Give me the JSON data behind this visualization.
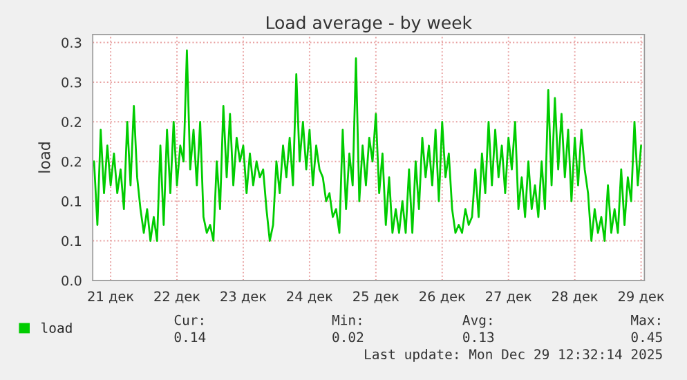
{
  "chart_data": {
    "type": "line",
    "title": "Load average - by week",
    "ylabel": "load",
    "x": [
      21.25,
      21.3,
      21.35,
      21.4,
      21.45,
      21.5,
      21.55,
      21.6,
      21.65,
      21.7,
      21.75,
      21.8,
      21.85,
      21.9,
      21.95,
      22.0,
      22.05,
      22.1,
      22.15,
      22.2,
      22.25,
      22.3,
      22.35,
      22.4,
      22.45,
      22.5,
      22.55,
      22.6,
      22.65,
      22.7,
      22.75,
      22.8,
      22.85,
      22.9,
      22.95,
      23.0,
      23.05,
      23.1,
      23.15,
      23.2,
      23.25,
      23.3,
      23.35,
      23.4,
      23.45,
      23.5,
      23.55,
      23.6,
      23.65,
      23.7,
      23.75,
      23.8,
      23.85,
      23.9,
      23.95,
      24.0,
      24.05,
      24.1,
      24.15,
      24.2,
      24.25,
      24.3,
      24.35,
      24.4,
      24.45,
      24.5,
      24.55,
      24.6,
      24.65,
      24.7,
      24.75,
      24.8,
      24.85,
      24.9,
      24.95,
      25.0,
      25.05,
      25.1,
      25.15,
      25.2,
      25.25,
      25.3,
      25.35,
      25.4,
      25.45,
      25.5,
      25.55,
      25.6,
      25.65,
      25.7,
      25.75,
      25.8,
      25.85,
      25.9,
      25.95,
      26.0,
      26.05,
      26.1,
      26.15,
      26.2,
      26.25,
      26.3,
      26.35,
      26.4,
      26.45,
      26.5,
      26.55,
      26.6,
      26.65,
      26.7,
      26.75,
      26.8,
      26.85,
      26.9,
      26.95,
      27.0,
      27.05,
      27.1,
      27.15,
      27.2,
      27.25,
      27.3,
      27.35,
      27.4,
      27.45,
      27.5,
      27.55,
      27.6,
      27.65,
      27.7,
      27.75,
      27.8,
      27.85,
      27.9,
      27.95,
      28.0,
      28.05,
      28.1,
      28.15,
      28.2,
      28.25,
      28.3,
      28.35,
      28.4,
      28.45,
      28.5,
      28.55,
      28.6,
      28.65,
      28.7,
      28.75,
      28.8,
      28.85,
      28.9,
      28.95,
      29.0,
      29.05,
      29.1,
      29.15,
      29.2,
      29.25,
      29.3,
      29.35,
      29.4,
      29.45,
      29.5
    ],
    "series": [
      {
        "name": "load",
        "color": "#00cc00",
        "values": [
          0.15,
          0.07,
          0.19,
          0.11,
          0.17,
          0.12,
          0.16,
          0.11,
          0.14,
          0.09,
          0.2,
          0.12,
          0.22,
          0.13,
          0.09,
          0.06,
          0.09,
          0.05,
          0.08,
          0.05,
          0.17,
          0.07,
          0.19,
          0.11,
          0.2,
          0.12,
          0.17,
          0.15,
          0.29,
          0.14,
          0.19,
          0.12,
          0.2,
          0.08,
          0.06,
          0.07,
          0.05,
          0.15,
          0.09,
          0.22,
          0.13,
          0.21,
          0.12,
          0.18,
          0.15,
          0.17,
          0.11,
          0.16,
          0.12,
          0.15,
          0.13,
          0.14,
          0.09,
          0.05,
          0.07,
          0.15,
          0.11,
          0.17,
          0.13,
          0.18,
          0.12,
          0.26,
          0.15,
          0.2,
          0.14,
          0.19,
          0.12,
          0.17,
          0.14,
          0.13,
          0.1,
          0.11,
          0.08,
          0.09,
          0.06,
          0.19,
          0.09,
          0.16,
          0.12,
          0.28,
          0.1,
          0.17,
          0.12,
          0.18,
          0.15,
          0.21,
          0.11,
          0.16,
          0.07,
          0.13,
          0.06,
          0.09,
          0.06,
          0.1,
          0.06,
          0.14,
          0.06,
          0.15,
          0.09,
          0.18,
          0.13,
          0.17,
          0.12,
          0.19,
          0.1,
          0.2,
          0.13,
          0.16,
          0.09,
          0.06,
          0.07,
          0.06,
          0.09,
          0.07,
          0.08,
          0.14,
          0.08,
          0.16,
          0.11,
          0.2,
          0.12,
          0.19,
          0.13,
          0.17,
          0.11,
          0.18,
          0.14,
          0.2,
          0.09,
          0.13,
          0.08,
          0.15,
          0.09,
          0.12,
          0.08,
          0.15,
          0.09,
          0.24,
          0.12,
          0.23,
          0.14,
          0.21,
          0.13,
          0.19,
          0.1,
          0.18,
          0.12,
          0.19,
          0.14,
          0.11,
          0.05,
          0.09,
          0.06,
          0.08,
          0.05,
          0.12,
          0.06,
          0.09,
          0.06,
          0.14,
          0.07,
          0.13,
          0.1,
          0.2,
          0.12,
          0.17
        ]
      }
    ],
    "xlim": [
      21.23,
      29.55
    ],
    "xticks": [
      {
        "value": 21.5,
        "label": "21 дек"
      },
      {
        "value": 22.5,
        "label": "22 дек"
      },
      {
        "value": 23.5,
        "label": "23 дек"
      },
      {
        "value": 24.5,
        "label": "24 дек"
      },
      {
        "value": 25.5,
        "label": "25 дек"
      },
      {
        "value": 26.5,
        "label": "26 дек"
      },
      {
        "value": 27.5,
        "label": "27 дек"
      },
      {
        "value": 28.5,
        "label": "28 дек"
      },
      {
        "value": 29.5,
        "label": "29 дек"
      }
    ],
    "ylim": [
      0,
      0.31
    ],
    "yticks": [
      {
        "value": 0,
        "label": "0.0"
      },
      {
        "value": 0.05,
        "label": "0.1"
      },
      {
        "value": 0.1,
        "label": "0.1"
      },
      {
        "value": 0.15,
        "label": "0.2"
      },
      {
        "value": 0.2,
        "label": "0.2"
      },
      {
        "value": 0.25,
        "label": "0.3"
      },
      {
        "value": 0.3,
        "label": "0.3"
      }
    ],
    "grid": true,
    "legend": "bottom left",
    "marker": "none",
    "line_style": "solid",
    "annotations": [
      "Cur:",
      "0.14",
      "Min:",
      "0.02",
      "Avg:",
      "0.13",
      "Max:",
      "0.45",
      "Last update: Mon Dec 29 12:32:14 2025"
    ]
  }
}
